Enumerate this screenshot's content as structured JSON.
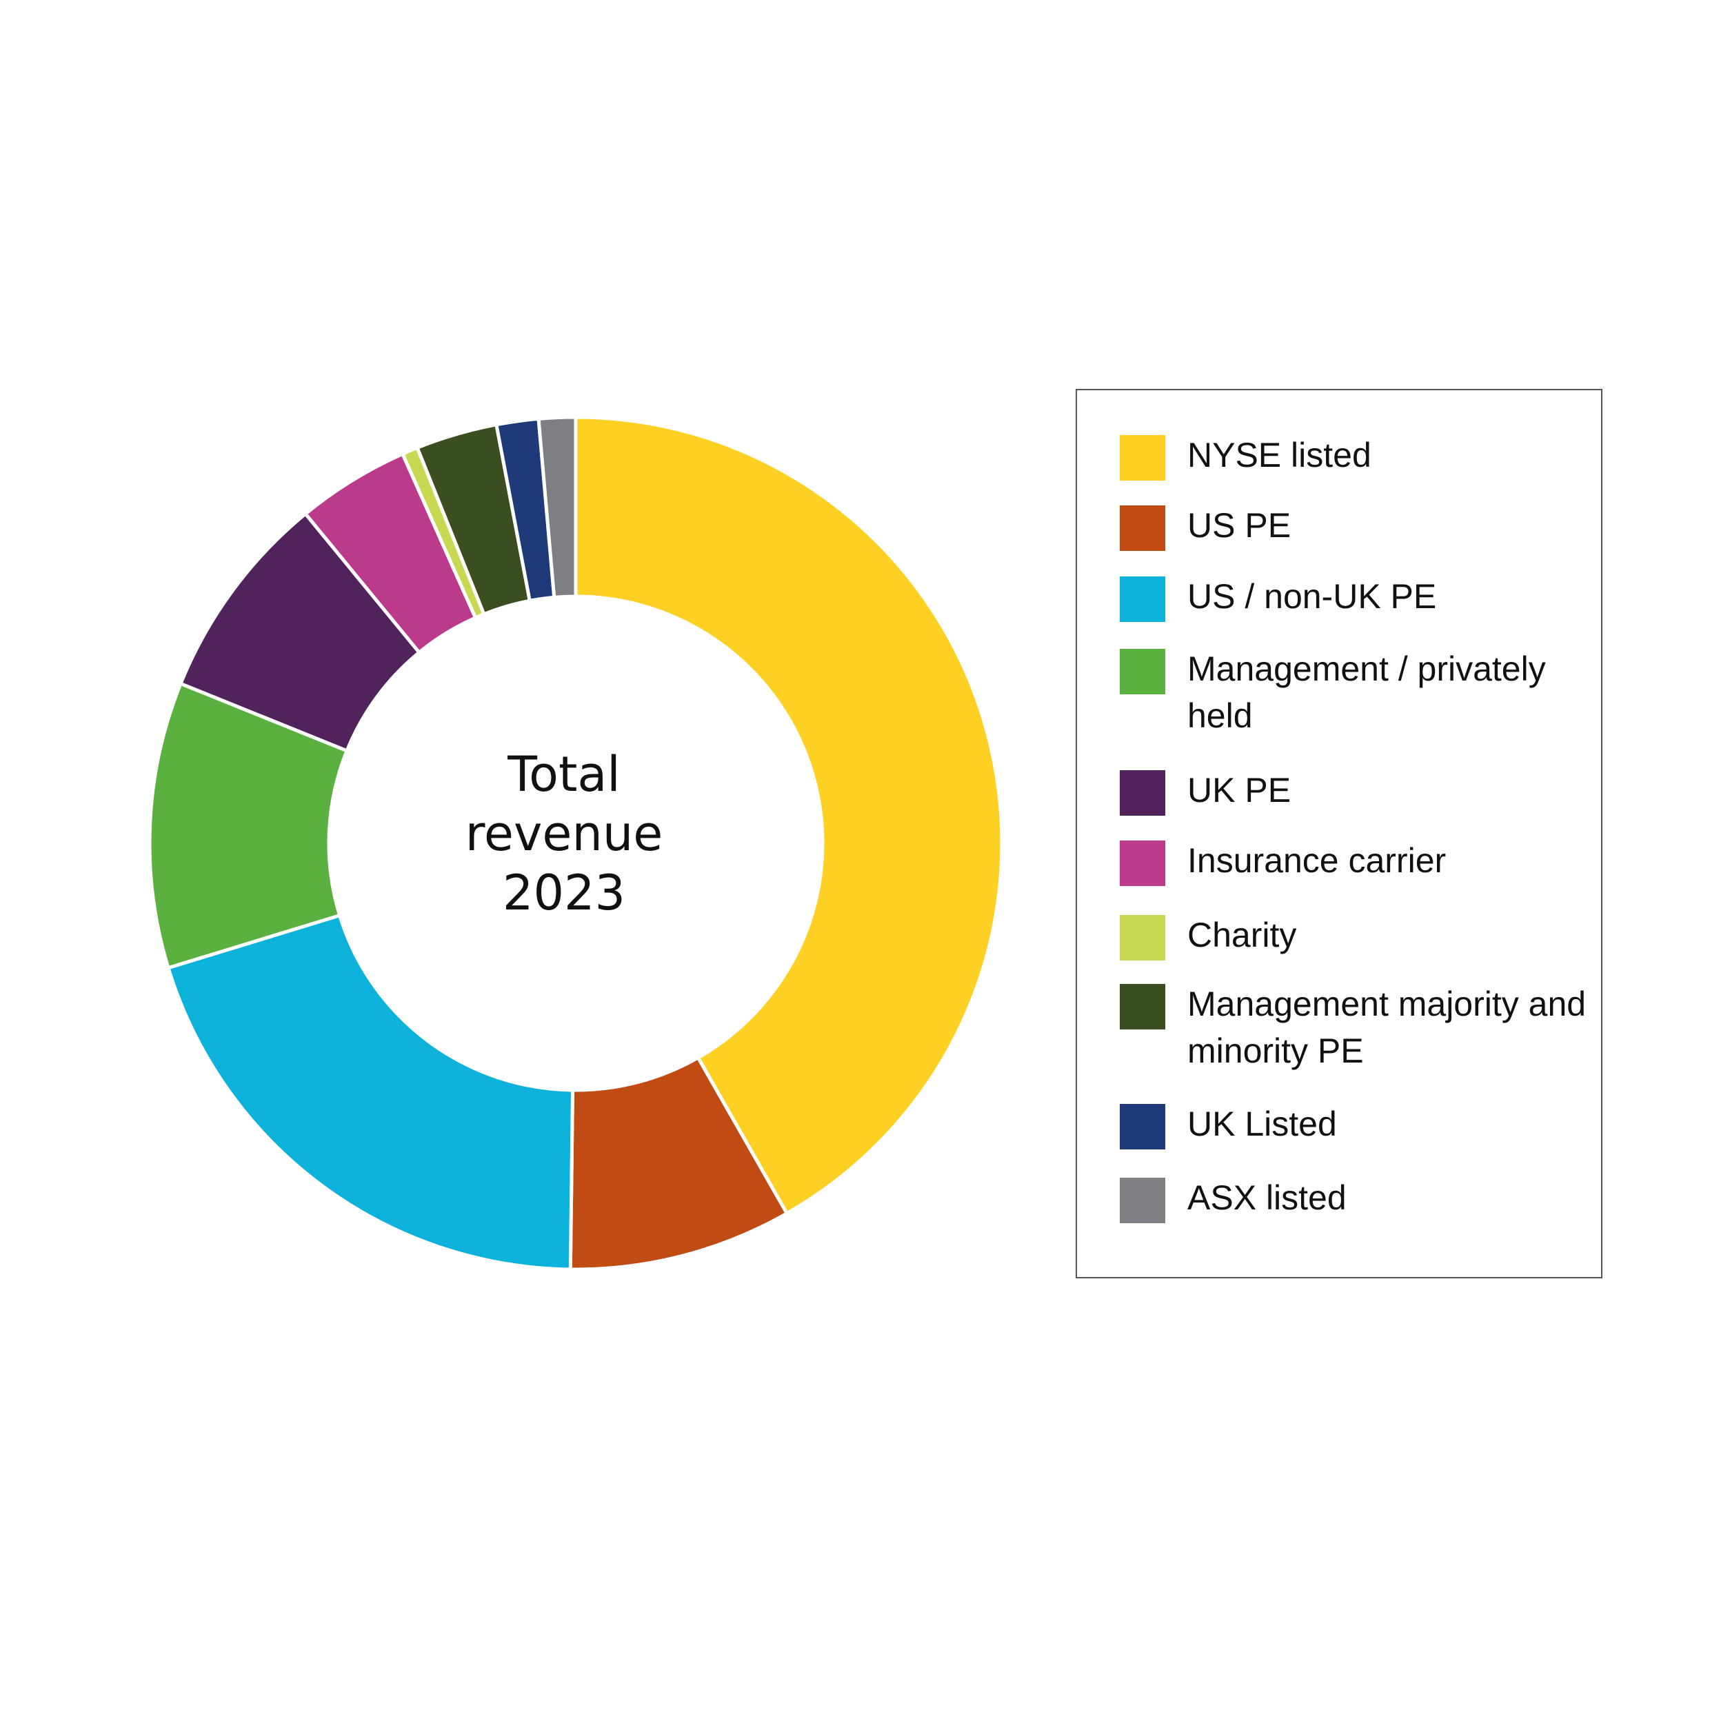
{
  "chart_data": {
    "type": "pie",
    "variant": "donut",
    "center_label": [
      "Total",
      "revenue",
      "2023"
    ],
    "legend_position": "right",
    "slices": [
      {
        "label": "NYSE listed",
        "value": 42.0,
        "color": "#FDD023"
      },
      {
        "label": "US PE",
        "value": 8.5,
        "color": "#C04C14"
      },
      {
        "label": "US / non-UK PE",
        "value": 20.2,
        "color": "#0CB2D9"
      },
      {
        "label": "Management / privately held",
        "value": 10.9,
        "color": "#5BB140"
      },
      {
        "label": "UK PE",
        "value": 8.0,
        "color": "#50235C"
      },
      {
        "label": "Insurance carrier",
        "value": 4.3,
        "color": "#BC3A8B"
      },
      {
        "label": "Charity",
        "value": 0.6,
        "color": "#C8D852"
      },
      {
        "label": "Management majority and minority PE",
        "value": 3.1,
        "color": "#3A4E20"
      },
      {
        "label": "UK Listed",
        "value": 1.6,
        "color": "#1F3A78"
      },
      {
        "label": "ASX listed",
        "value": 1.4,
        "color": "#7E7F83"
      }
    ]
  },
  "legend": {
    "items": [
      {
        "label": "NYSE listed",
        "color": "#FDD023"
      },
      {
        "label": "US PE",
        "color": "#C04C14"
      },
      {
        "label": "US / non-UK PE",
        "color": "#0CB2D9"
      },
      {
        "label": "Management / privately held",
        "color": "#5BB140"
      },
      {
        "label": "UK PE",
        "color": "#50235C"
      },
      {
        "label": "Insurance carrier",
        "color": "#BC3A8B"
      },
      {
        "label": "Charity",
        "color": "#C8D852"
      },
      {
        "label": "Management majority and minority PE",
        "color": "#3A4E20"
      },
      {
        "label": "UK Listed",
        "color": "#1F3A78"
      },
      {
        "label": "ASX listed",
        "color": "#7E7F83"
      }
    ]
  }
}
